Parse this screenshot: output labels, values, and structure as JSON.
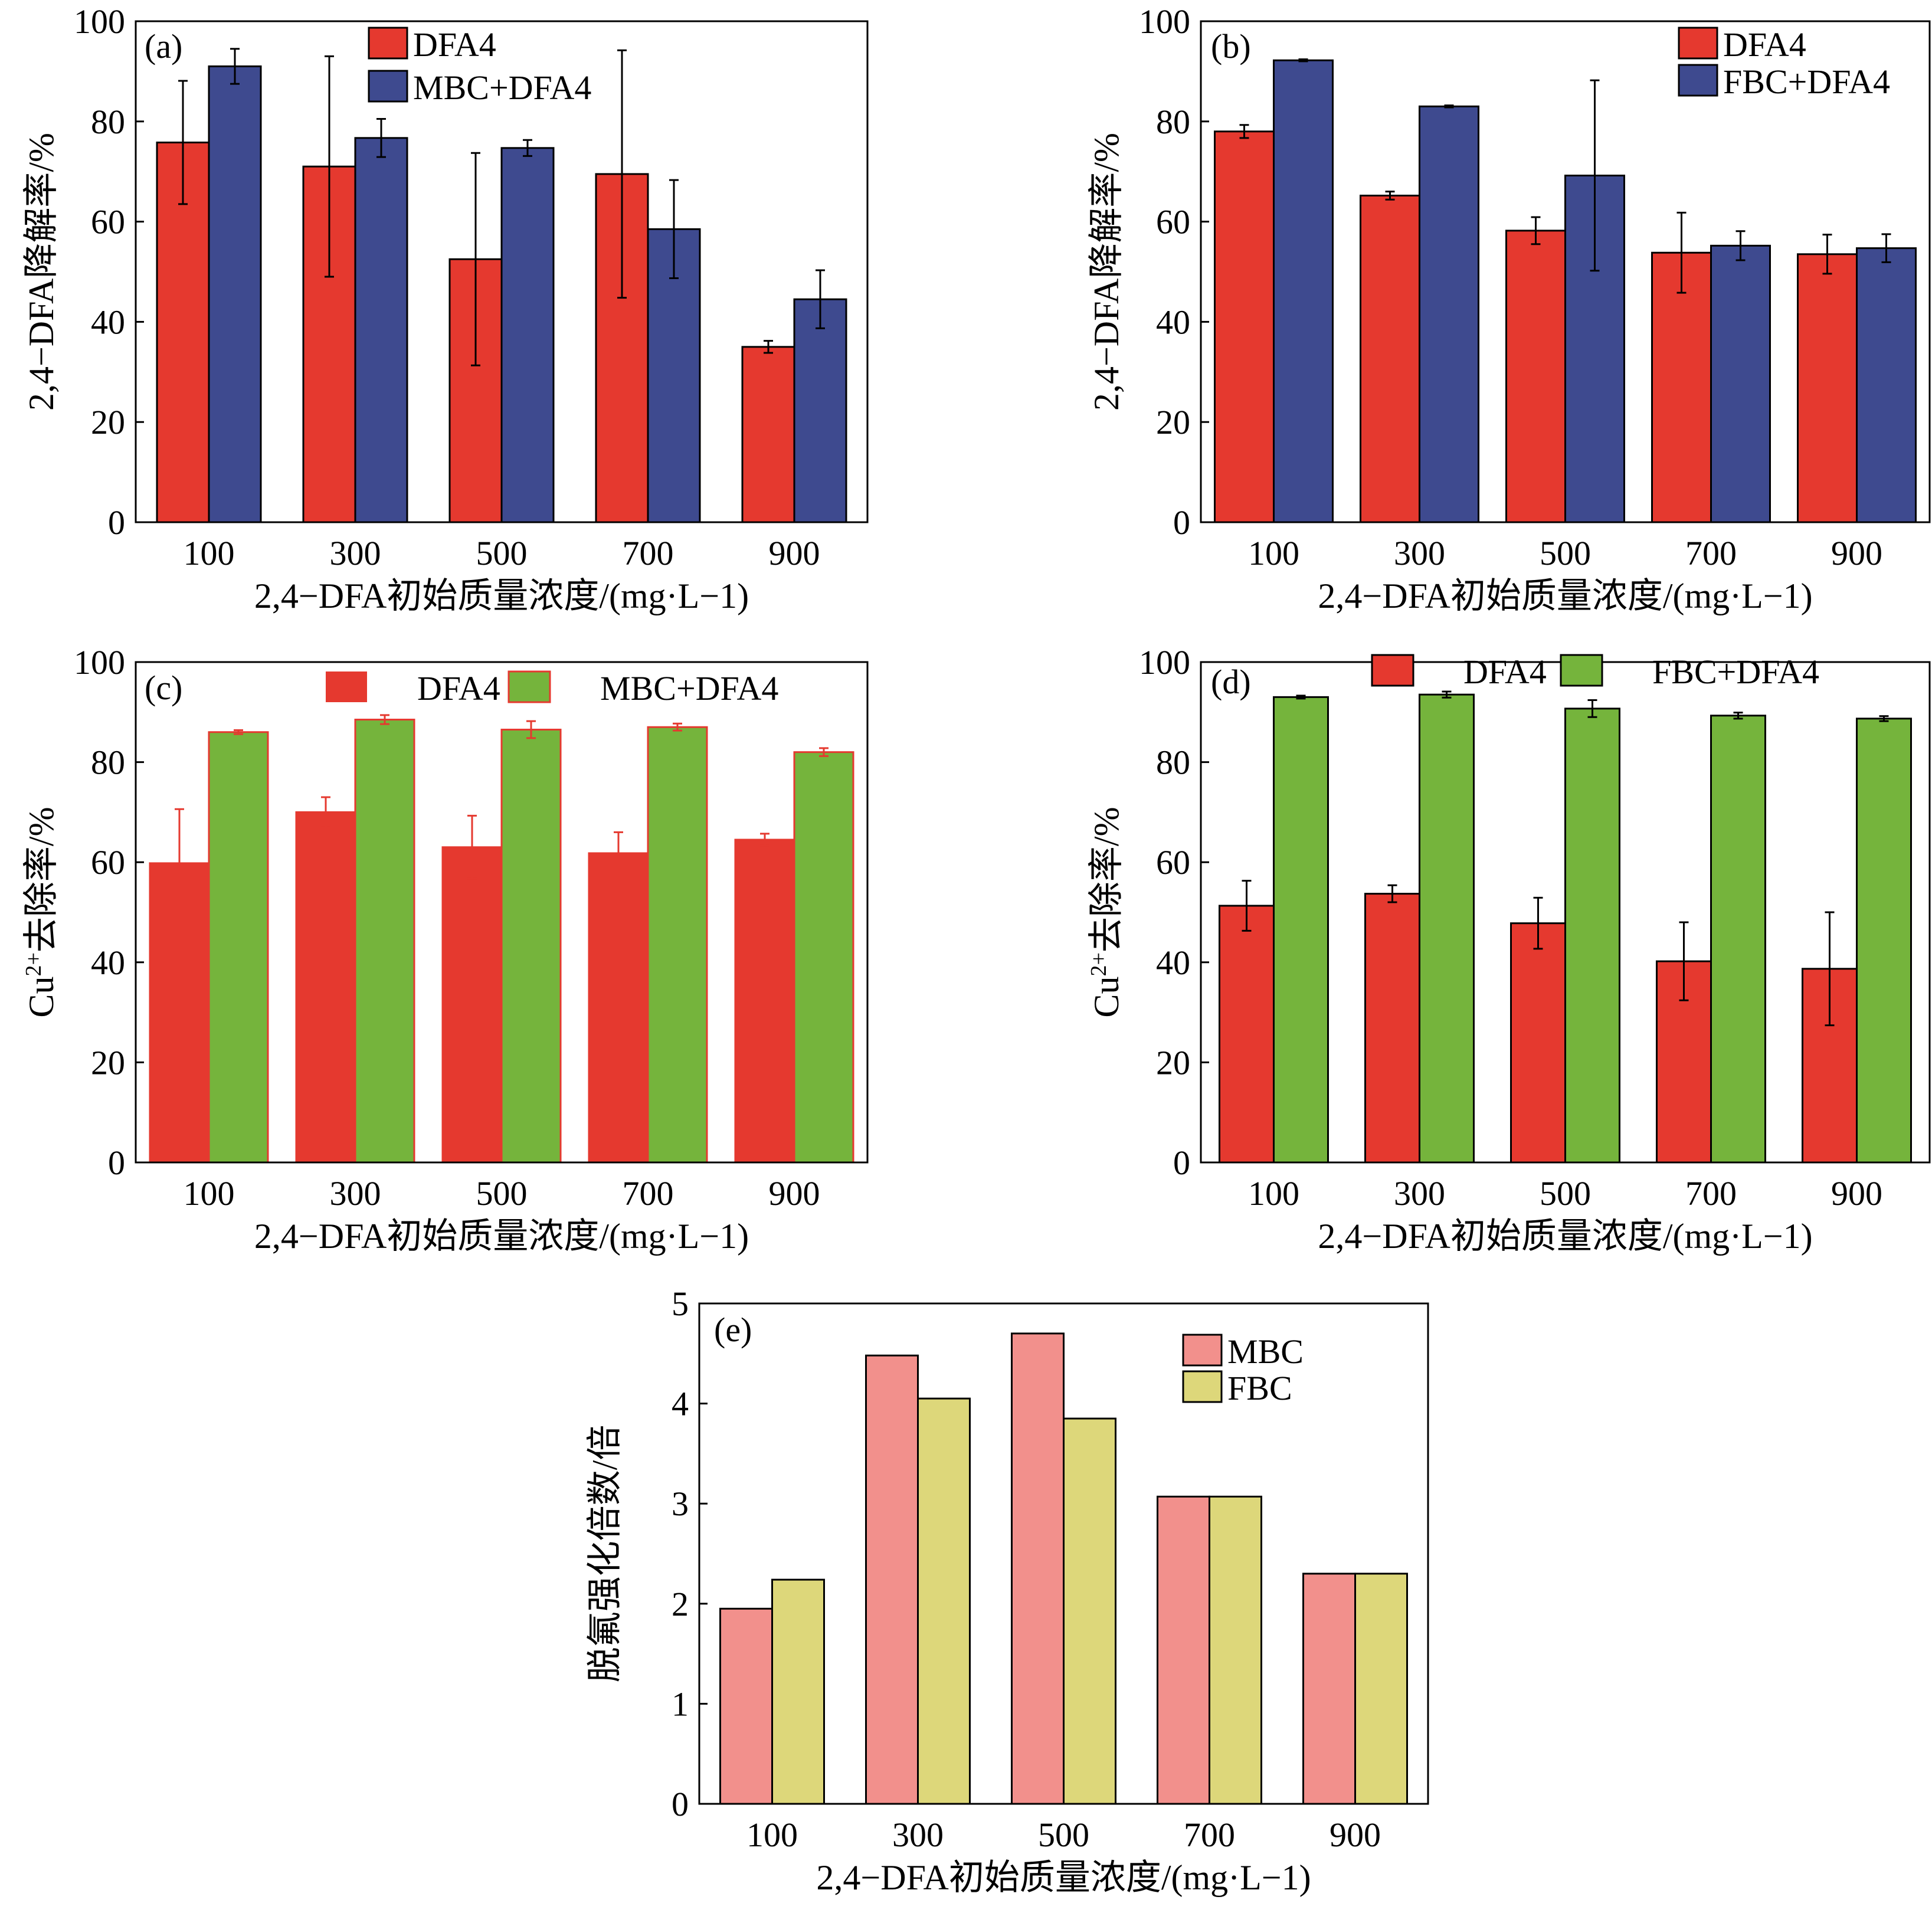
{
  "colors": {
    "red": "#e5392f",
    "navy": "#3e4a8f",
    "green": "#75b43c",
    "pink": "#f2908c",
    "khaki": "#ddd77a"
  },
  "chart_data": [
    {
      "id": "a",
      "type": "bar",
      "panel_label": "(a)",
      "categories": [
        "100",
        "300",
        "500",
        "700",
        "900"
      ],
      "ylim": [
        0,
        100
      ],
      "yticks": [
        "0",
        "20",
        "40",
        "60",
        "80",
        "100"
      ],
      "ylabel": "2,4−DFA降解率/%",
      "xlabel": "2,4−DFA初始质量浓度/(mg·L−1)",
      "legend_position": "top-center",
      "series": [
        {
          "name": "DFA4",
          "color": "#e5392f",
          "values": [
            75.8,
            71.0,
            52.5,
            69.5,
            35.0
          ],
          "errors": [
            12.3,
            22.0,
            21.2,
            24.7,
            1.2
          ]
        },
        {
          "name": "MBC+DFA4",
          "color": "#3e4a8f",
          "values": [
            91.0,
            76.7,
            74.7,
            58.5,
            44.5
          ],
          "errors": [
            3.5,
            3.8,
            1.6,
            9.8,
            5.8
          ]
        }
      ]
    },
    {
      "id": "b",
      "type": "bar",
      "panel_label": "(b)",
      "categories": [
        "100",
        "300",
        "500",
        "700",
        "900"
      ],
      "ylim": [
        0,
        100
      ],
      "yticks": [
        "0",
        "20",
        "40",
        "60",
        "80",
        "100"
      ],
      "ylabel": "2,4−DFA降解率/%",
      "xlabel": "2,4−DFA初始质量浓度/(mg·L−1)",
      "legend_position": "top-right",
      "series": [
        {
          "name": "DFA4",
          "color": "#e5392f",
          "values": [
            78.0,
            65.2,
            58.2,
            53.8,
            53.5
          ],
          "errors": [
            1.3,
            0.8,
            2.7,
            8.0,
            3.9
          ]
        },
        {
          "name": "FBC+DFA4",
          "color": "#3e4a8f",
          "values": [
            92.2,
            83.0,
            69.2,
            55.2,
            54.7
          ],
          "errors": [
            0.2,
            0.2,
            19.0,
            2.9,
            2.8
          ]
        }
      ]
    },
    {
      "id": "c",
      "type": "bar",
      "panel_label": "(c)",
      "categories": [
        "100",
        "300",
        "500",
        "700",
        "900"
      ],
      "ylim": [
        0,
        100
      ],
      "yticks": [
        "0",
        "20",
        "40",
        "60",
        "80",
        "100"
      ],
      "ylabel_main": "Cu",
      "ylabel_sup": "2+",
      "ylabel_rest": "去除率/%",
      "xlabel": "2,4−DFA初始质量浓度/(mg·L−1)",
      "legend_position": "top",
      "series": [
        {
          "name": "DFA4",
          "color": "#e5392f",
          "values": [
            59.8,
            70.0,
            63.0,
            61.8,
            64.5
          ],
          "errors": [
            10.8,
            3.0,
            6.3,
            4.2,
            1.2
          ]
        },
        {
          "name": "MBC+DFA4",
          "color": "#75b43c",
          "values": [
            86.0,
            88.5,
            86.5,
            87.0,
            82.0
          ],
          "errors": [
            0.4,
            0.9,
            1.7,
            0.7,
            0.8
          ]
        }
      ]
    },
    {
      "id": "d",
      "type": "bar",
      "panel_label": "(d)",
      "categories": [
        "100",
        "300",
        "500",
        "700",
        "900"
      ],
      "ylim": [
        0,
        100
      ],
      "yticks": [
        "0",
        "20",
        "40",
        "60",
        "80",
        "100"
      ],
      "ylabel_main": "Cu",
      "ylabel_sup": "2+",
      "ylabel_rest": "去除率/%",
      "xlabel": "2,4−DFA初始质量浓度/(mg·L−1)",
      "legend_position": "top",
      "series": [
        {
          "name": "DFA4",
          "color": "#e5392f",
          "values": [
            51.3,
            53.7,
            47.8,
            40.2,
            38.7
          ],
          "errors": [
            5.0,
            1.7,
            5.1,
            7.8,
            11.3
          ]
        },
        {
          "name": "FBC+DFA4",
          "color": "#75b43c",
          "values": [
            93.0,
            93.5,
            90.7,
            89.3,
            88.7
          ],
          "errors": [
            0.3,
            0.6,
            1.7,
            0.6,
            0.5
          ]
        }
      ]
    },
    {
      "id": "e",
      "type": "bar",
      "panel_label": "(e)",
      "categories": [
        "100",
        "300",
        "500",
        "700",
        "900"
      ],
      "ylim": [
        0,
        5
      ],
      "yticks": [
        "0",
        "1",
        "2",
        "3",
        "4",
        "5"
      ],
      "ylabel": "脱氟强化倍数/倍",
      "xlabel": "2,4−DFA初始质量浓度/(mg·L−1)",
      "legend_position": "top-right",
      "series": [
        {
          "name": "MBC",
          "color": "#f2908c",
          "values": [
            1.95,
            4.48,
            4.7,
            3.07,
            2.3
          ]
        },
        {
          "name": "FBC",
          "color": "#ddd77a",
          "values": [
            2.24,
            4.05,
            3.85,
            3.07,
            2.3
          ]
        }
      ]
    }
  ]
}
